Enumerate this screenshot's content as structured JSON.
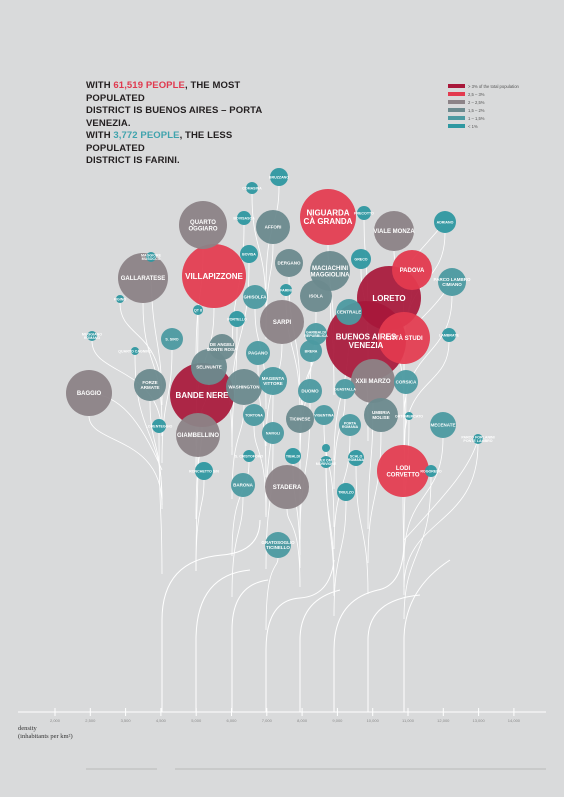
{
  "headline": {
    "l1_pre": "WITH ",
    "l1_num": "61,519 PEOPLE",
    "l1_post": ", THE MOST POPULATED",
    "l2": "DISTRICT IS BUENOS AIRES – PORTA VENEZIA.",
    "l3_pre": "WITH ",
    "l3_num": "3,772 PEOPLE",
    "l3_post": ", THE LESS POPULATED",
    "l4": "DISTRICT IS FARINI."
  },
  "colors": {
    "background": "#d9dadb",
    "highlight_red": "#e0384e",
    "highlight_teal": "#3fa3ad",
    "branch": "#ffffff"
  },
  "legend": [
    {
      "label": "> 3% of the total population",
      "color": "#a8183a"
    },
    {
      "label": "2,5 – 3%",
      "color": "#e33a4f"
    },
    {
      "label": "2 – 2,5%",
      "color": "#8c8387"
    },
    {
      "label": "1,5 – 2%",
      "color": "#6c8a8e"
    },
    {
      "label": "1 – 1,5%",
      "color": "#4c9aa1"
    },
    {
      "label": "< 1%",
      "color": "#2f98a1"
    }
  ],
  "axis": {
    "title_l1": "density",
    "title_l2": "(inhabitants per km²)",
    "ticks": [
      "2,000",
      "2,500",
      "3,500",
      "4,500",
      "5,000",
      "6,000",
      "7,000",
      "8,000",
      "9,000",
      "10,000",
      "11,000",
      "12,000",
      "13,000",
      "14,000"
    ]
  },
  "chart_data": {
    "type": "bubble-tree",
    "xlabel": "density (inhabitants per km²)",
    "districts": [
      {
        "name": "BUENOS AIRES VENEZIA",
        "category": "> 3%"
      },
      {
        "name": "LORETO",
        "category": "> 3%"
      },
      {
        "name": "BANDE NERE",
        "category": "> 3%"
      },
      {
        "name": "NIGUARDA CÀ GRANDA",
        "category": "2,5 – 3%"
      },
      {
        "name": "VILLAPIZZONE",
        "category": "2,5 – 3%"
      },
      {
        "name": "PADOVA",
        "category": "2,5 – 3%"
      },
      {
        "name": "CITTÀ STUDI",
        "category": "2,5 – 3%"
      },
      {
        "name": "LODI CORVETTO",
        "category": "2,5 – 3%"
      },
      {
        "name": "QUARTO OGGIARO",
        "category": "2 – 2,5%"
      },
      {
        "name": "GALLARATESE",
        "category": "2 – 2,5%"
      },
      {
        "name": "VIALE MONZA",
        "category": "2 – 2,5%"
      },
      {
        "name": "BAGGIO",
        "category": "2 – 2,5%"
      },
      {
        "name": "SARPI",
        "category": "2 – 2,5%"
      },
      {
        "name": "GIAMBELLINO",
        "category": "2 – 2,5%"
      },
      {
        "name": "XXII MARZO",
        "category": "2 – 2,5%"
      },
      {
        "name": "STADERA",
        "category": "2 – 2,5%"
      },
      {
        "name": "AFFORI",
        "category": "1,5 – 2%"
      },
      {
        "name": "MACIACHINI MAGGIOLINA",
        "category": "1,5 – 2%"
      },
      {
        "name": "DERGANO",
        "category": "1,5 – 2%"
      },
      {
        "name": "ISOLA",
        "category": "1,5 – 2%"
      },
      {
        "name": "SELINUNTE",
        "category": "1,5 – 2%"
      },
      {
        "name": "WASHINGTON",
        "category": "1,5 – 2%"
      },
      {
        "name": "FORZE ARMATE",
        "category": "1,5 – 2%"
      },
      {
        "name": "TICINESE",
        "category": "1,5 – 2%"
      },
      {
        "name": "UMBRIA MOLISE",
        "category": "1,5 – 2%"
      },
      {
        "name": "DE ANGELI MONTE ROSA",
        "category": "1,5 – 2%"
      },
      {
        "name": "BRUZZANO",
        "category": "< 1%"
      },
      {
        "name": "COMASINA",
        "category": "< 1%"
      },
      {
        "name": "BOVISASCA",
        "category": "< 1%"
      },
      {
        "name": "BOVISA",
        "category": "< 1%"
      },
      {
        "name": "GRECO",
        "category": "< 1%"
      },
      {
        "name": "PRECOTTO",
        "category": "< 1%"
      },
      {
        "name": "ADRIANO",
        "category": "< 1%"
      },
      {
        "name": "PARCO LAMBRO CIMIANO",
        "category": "1 – 1,5%"
      },
      {
        "name": "MAGGIORE MUSOCCO",
        "category": "< 1%"
      },
      {
        "name": "FIGINO",
        "category": "< 1%"
      },
      {
        "name": "GHISOLFA",
        "category": "1 – 1,5%"
      },
      {
        "name": "FARINI",
        "category": "< 1%"
      },
      {
        "name": "PORTELLO",
        "category": "< 1%"
      },
      {
        "name": "CENTRALE",
        "category": "1 – 1,5%"
      },
      {
        "name": "GARIBALDI REPUBBLICA",
        "category": "1 – 1,5%"
      },
      {
        "name": "BRERA",
        "category": "1 – 1,5%"
      },
      {
        "name": "S. SIRO",
        "category": "1 – 1,5%"
      },
      {
        "name": "QT 8",
        "category": "< 1%"
      },
      {
        "name": "QUARTO CAGNINO",
        "category": "< 1%"
      },
      {
        "name": "MUGGIANO ROMANO",
        "category": "< 1%"
      },
      {
        "name": "LAMBRATE",
        "category": "< 1%"
      },
      {
        "name": "PAGANO",
        "category": "1 – 1,5%"
      },
      {
        "name": "MAGENTA VITTORE",
        "category": "1 – 1,5%"
      },
      {
        "name": "DUOMO",
        "category": "1 – 1,5%"
      },
      {
        "name": "GUASTALLA",
        "category": "1 – 1,5%"
      },
      {
        "name": "CORSICA",
        "category": "1 – 1,5%"
      },
      {
        "name": "ORTOMERCATO",
        "category": "< 1%"
      },
      {
        "name": "MECENATE",
        "category": "1 – 1,5%"
      },
      {
        "name": "LORENTEGGIO",
        "category": "< 1%"
      },
      {
        "name": "TORTONA",
        "category": "1 – 1,5%"
      },
      {
        "name": "VIGENTINA",
        "category": "1 – 1,5%"
      },
      {
        "name": "PORTA ROMANA",
        "category": "1 – 1,5%"
      },
      {
        "name": "NAVIGLI",
        "category": "1 – 1,5%"
      },
      {
        "name": "PARCO FORLANINI PONTE LAMBRO",
        "category": "< 1%"
      },
      {
        "name": "S. CRISTOFORO",
        "category": "< 1%"
      },
      {
        "name": "TIBALDI",
        "category": "< 1%"
      },
      {
        "name": "EX OM MORIVIONE",
        "category": "< 1%"
      },
      {
        "name": "SCALO ROMANA",
        "category": "< 1%"
      },
      {
        "name": "ROGOREDO",
        "category": "< 1%"
      },
      {
        "name": "RONCHETTO S/N",
        "category": "< 1%"
      },
      {
        "name": "BARONA",
        "category": "1 – 1,5%"
      },
      {
        "name": "TRIULZO SUPERIORE",
        "category": "< 1%"
      },
      {
        "name": "GRATOSOGLIO TICINELLO",
        "category": "1 – 1,5%"
      },
      {
        "name": "VIGENTINA 2",
        "category": "< 1%"
      }
    ]
  }
}
